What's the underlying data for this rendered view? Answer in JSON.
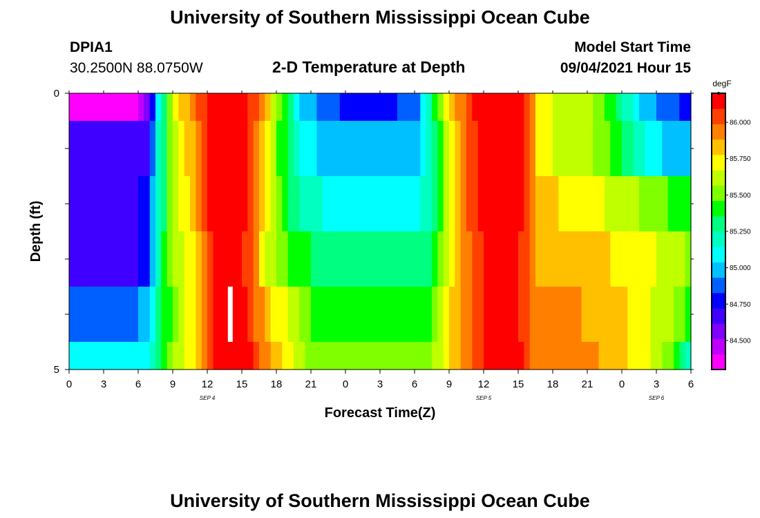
{
  "header": {
    "title": "University of Southern Mississippi Ocean Cube",
    "station_id": "DPIA1",
    "coordinates": "30.2500N  88.0750W",
    "subtitle": "2-D Temperature at Depth",
    "model_start_label": "Model Start Time",
    "model_start_value": "09/04/2021 Hour 15"
  },
  "footer": {
    "title": "University of Southern Mississippi Ocean Cube"
  },
  "colors": {
    "palette": [
      "#ff00ff",
      "#c000ff",
      "#8000ff",
      "#4000ff",
      "#0000ff",
      "#0060ff",
      "#00c0ff",
      "#00ffff",
      "#00ffc0",
      "#00ff80",
      "#00ff00",
      "#80ff00",
      "#c0ff00",
      "#ffff00",
      "#ffc000",
      "#ff8000",
      "#ff4000",
      "#ff0000"
    ],
    "marker": "#ffffff"
  },
  "chart_data": {
    "type": "heatmap",
    "title": "2-D Temperature at Depth",
    "xlabel": "Forecast Time(Z)",
    "ylabel": "Depth (ft)",
    "x_hours_range": [
      0,
      54
    ],
    "ylim": [
      0,
      5
    ],
    "x_tick_hours": [
      0,
      3,
      6,
      9,
      12,
      15,
      18,
      21,
      24,
      27,
      30,
      33,
      36,
      39,
      42,
      45,
      48,
      51,
      54
    ],
    "x_tick_labels": [
      "0",
      "3",
      "6",
      "9",
      "12",
      "15",
      "18",
      "21",
      "0",
      "3",
      "6",
      "9",
      "12",
      "15",
      "18",
      "21",
      "0",
      "3",
      "6"
    ],
    "y_tick_values": [
      0,
      5
    ],
    "y_tick_labels": [
      "0",
      "5"
    ],
    "date_labels": [
      {
        "hour": 12,
        "label": "SEP 4"
      },
      {
        "hour": 36,
        "label": "SEP 5"
      },
      {
        "hour": 51,
        "label": "SEP 6"
      }
    ],
    "depth_layers": [
      {
        "from": 0,
        "to": 0.5
      },
      {
        "from": 0.5,
        "to": 1.5
      },
      {
        "from": 1.5,
        "to": 2.5
      },
      {
        "from": 2.5,
        "to": 3.5
      },
      {
        "from": 3.5,
        "to": 4.5
      },
      {
        "from": 4.5,
        "to": 5
      }
    ],
    "keyframes": [
      {
        "hour": 0,
        "values": [
          84.38,
          84.62,
          84.7,
          84.7,
          84.92,
          85.05
        ]
      },
      {
        "hour": 6,
        "values": [
          84.38,
          84.62,
          84.7,
          84.7,
          84.92,
          85.05
        ]
      },
      {
        "hour": 7,
        "values": [
          84.6,
          84.7,
          84.8,
          84.85,
          85.0,
          85.1
        ]
      },
      {
        "hour": 7.6,
        "values": [
          85.05,
          85.1,
          85.15,
          85.2,
          85.25,
          85.3
        ]
      },
      {
        "hour": 9,
        "values": [
          85.65,
          85.6,
          85.55,
          85.55,
          85.5,
          85.55
        ]
      },
      {
        "hour": 11,
        "values": [
          86.0,
          85.9,
          85.9,
          85.8,
          85.8,
          85.8
        ]
      },
      {
        "hour": 12.5,
        "values": [
          86.18,
          86.15,
          86.15,
          86.15,
          86.1,
          86.15
        ]
      },
      {
        "hour": 14.5,
        "values": [
          86.2,
          86.2,
          86.2,
          86.2,
          86.2,
          86.2
        ]
      },
      {
        "hour": 16,
        "values": [
          86.05,
          86.0,
          86.0,
          85.95,
          86.0,
          86.1
        ]
      },
      {
        "hour": 17,
        "values": [
          85.85,
          85.75,
          85.75,
          85.7,
          85.85,
          85.95
        ]
      },
      {
        "hour": 18.5,
        "values": [
          85.45,
          85.4,
          85.45,
          85.5,
          85.7,
          85.75
        ]
      },
      {
        "hour": 20,
        "values": [
          85.05,
          85.15,
          85.25,
          85.4,
          85.55,
          85.6
        ]
      },
      {
        "hour": 21,
        "values": [
          84.95,
          85.05,
          85.2,
          85.35,
          85.45,
          85.55
        ]
      },
      {
        "hour": 24,
        "values": [
          84.8,
          84.98,
          85.05,
          85.3,
          85.4,
          85.5
        ]
      },
      {
        "hour": 27,
        "values": [
          84.8,
          84.98,
          85.05,
          85.3,
          85.4,
          85.5
        ]
      },
      {
        "hour": 30,
        "values": [
          84.85,
          85.0,
          85.1,
          85.32,
          85.42,
          85.52
        ]
      },
      {
        "hour": 31.5,
        "values": [
          85.3,
          85.2,
          85.2,
          85.35,
          85.45,
          85.55
        ]
      },
      {
        "hour": 33,
        "values": [
          85.8,
          85.7,
          85.7,
          85.7,
          85.75,
          85.75
        ]
      },
      {
        "hour": 35,
        "values": [
          86.1,
          86.05,
          86.05,
          86.0,
          86.0,
          86.0
        ]
      },
      {
        "hour": 37,
        "values": [
          86.2,
          86.2,
          86.2,
          86.2,
          86.2,
          86.2
        ]
      },
      {
        "hour": 39,
        "values": [
          86.18,
          86.15,
          86.15,
          86.12,
          86.12,
          86.15
        ]
      },
      {
        "hour": 40,
        "values": [
          85.95,
          85.95,
          85.95,
          85.95,
          85.98,
          86.0
        ]
      },
      {
        "hour": 41,
        "values": [
          85.7,
          85.7,
          85.8,
          85.85,
          85.9,
          85.95
        ]
      },
      {
        "hour": 44,
        "values": [
          85.6,
          85.6,
          85.75,
          85.82,
          85.9,
          85.92
        ]
      },
      {
        "hour": 46,
        "values": [
          85.55,
          85.55,
          85.7,
          85.8,
          85.85,
          85.88
        ]
      },
      {
        "hour": 48,
        "values": [
          85.25,
          85.38,
          85.6,
          85.75,
          85.8,
          85.8
        ]
      },
      {
        "hour": 50,
        "values": [
          85.0,
          85.15,
          85.55,
          85.7,
          85.7,
          85.7
        ]
      },
      {
        "hour": 52,
        "values": [
          84.85,
          85.0,
          85.45,
          85.65,
          85.6,
          85.5
        ]
      },
      {
        "hour": 54,
        "values": [
          84.8,
          84.95,
          85.4,
          85.55,
          85.4,
          85.2
        ]
      }
    ],
    "marker": {
      "hour": 14,
      "depth_from": 3.5,
      "depth_to": 4.5
    },
    "colorbar": {
      "label": "degF",
      "range": [
        84.3,
        86.2
      ],
      "tick_values": [
        84.5,
        84.75,
        85.0,
        85.25,
        85.5,
        85.75,
        86.0
      ],
      "tick_labels": [
        "84.500",
        "84.750",
        "85.000",
        "85.250",
        "85.500",
        "85.750",
        "86.000"
      ]
    }
  }
}
